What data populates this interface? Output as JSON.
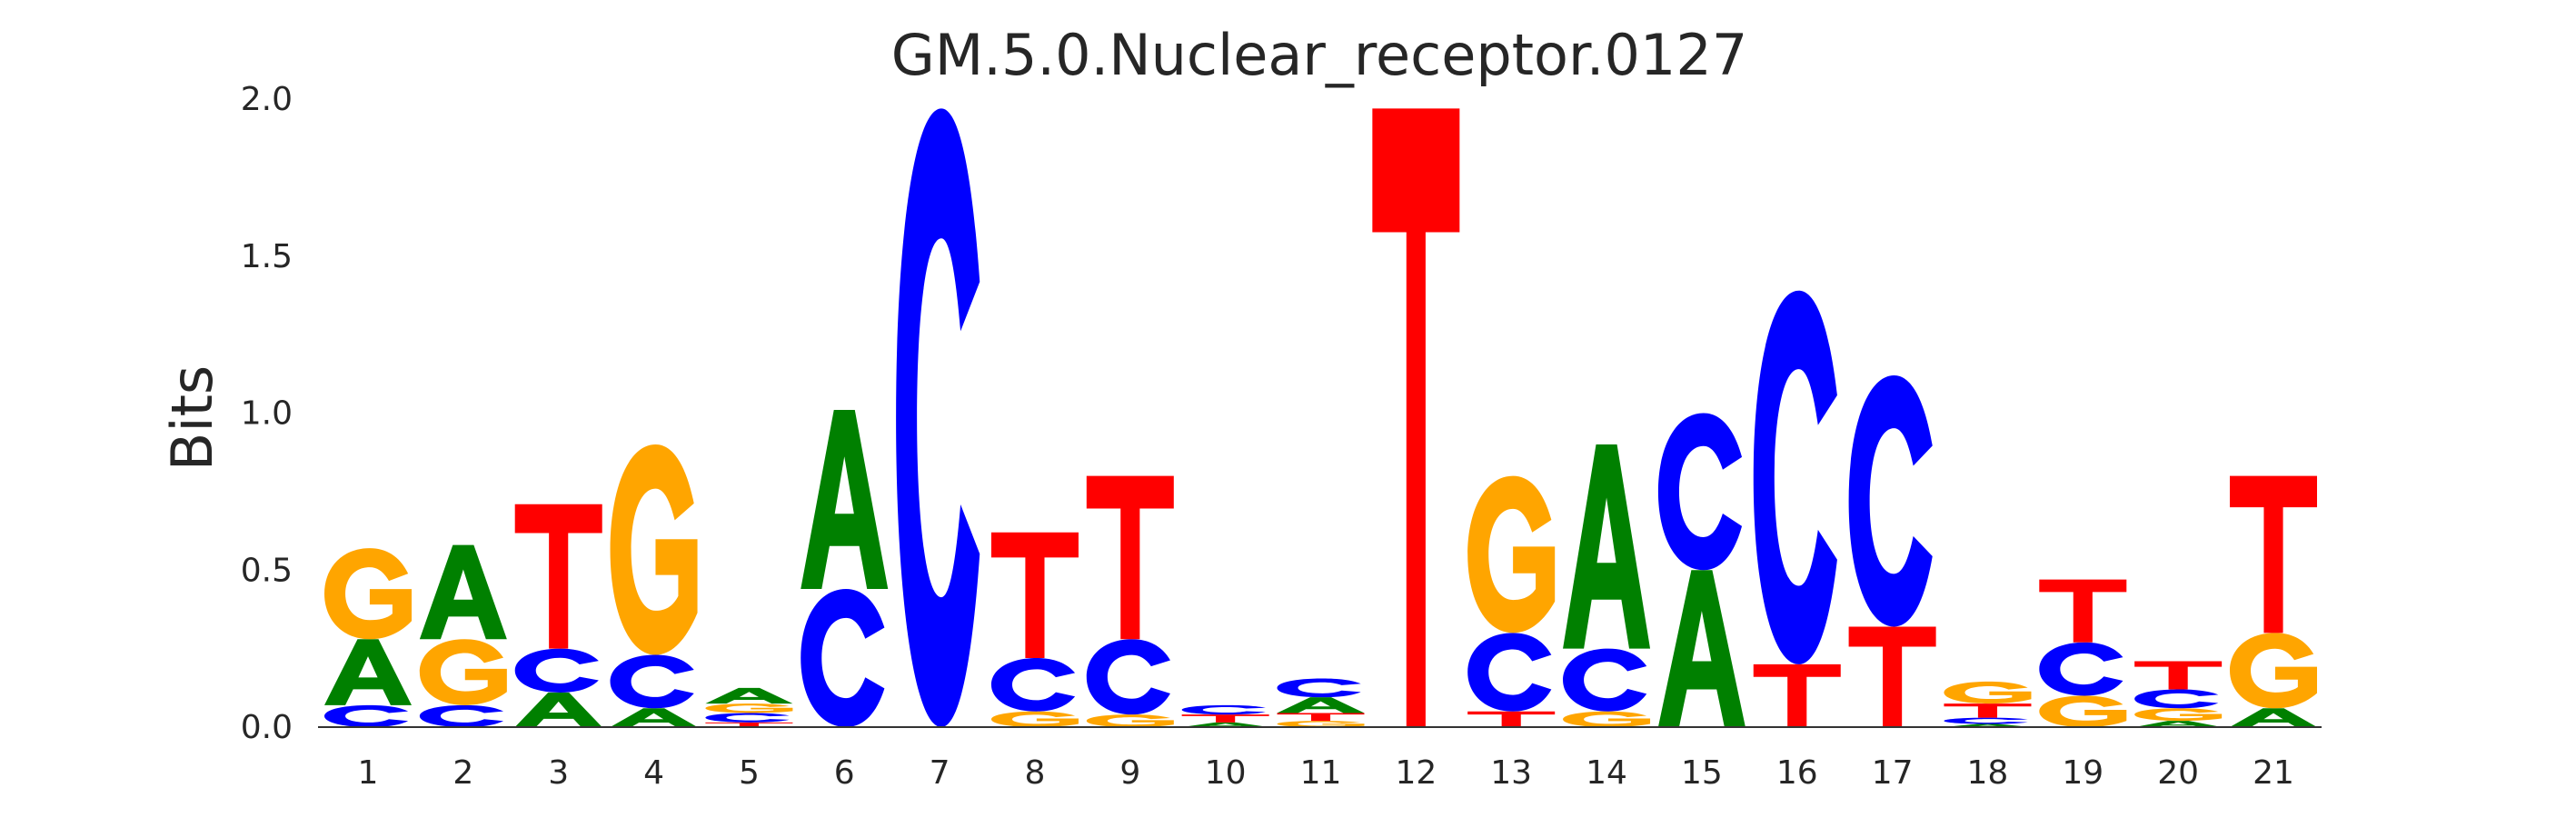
{
  "chart_data": {
    "type": "sequence-logo",
    "title": "GM.5.0.Nuclear_receptor.0127",
    "xlabel": "",
    "ylabel": "Bits",
    "ylim": [
      0,
      2.0
    ],
    "yticks": [
      "0.0",
      "0.5",
      "1.0",
      "1.5",
      "2.0"
    ],
    "ytick_values": [
      0,
      0.5,
      1.0,
      1.5,
      2.0
    ],
    "colors": {
      "A": "#008000",
      "C": "#0000ff",
      "G": "#ffa500",
      "T": "#ff0000"
    },
    "positions": [
      {
        "label": "1",
        "stack": [
          [
            "C",
            0.07
          ],
          [
            "A",
            0.21
          ],
          [
            "G",
            0.29
          ]
        ]
      },
      {
        "label": "2",
        "stack": [
          [
            "C",
            0.07
          ],
          [
            "G",
            0.21
          ],
          [
            "A",
            0.3
          ]
        ]
      },
      {
        "label": "3",
        "stack": [
          [
            "A",
            0.11
          ],
          [
            "C",
            0.14
          ],
          [
            "T",
            0.46
          ]
        ]
      },
      {
        "label": "4",
        "stack": [
          [
            "A",
            0.06
          ],
          [
            "C",
            0.17
          ],
          [
            "G",
            0.67
          ]
        ]
      },
      {
        "label": "5",
        "stack": [
          [
            "T",
            0.015
          ],
          [
            "C",
            0.03
          ],
          [
            "G",
            0.03
          ],
          [
            "A",
            0.05
          ]
        ]
      },
      {
        "label": "6",
        "stack": [
          [
            "C",
            0.44
          ],
          [
            "A",
            0.57
          ]
        ]
      },
      {
        "label": "7",
        "stack": [
          [
            "C",
            1.97
          ]
        ]
      },
      {
        "label": "8",
        "stack": [
          [
            "G",
            0.05
          ],
          [
            "C",
            0.17
          ],
          [
            "T",
            0.4
          ]
        ]
      },
      {
        "label": "9",
        "stack": [
          [
            "G",
            0.04
          ],
          [
            "C",
            0.24
          ],
          [
            "T",
            0.52
          ]
        ]
      },
      {
        "label": "10",
        "stack": [
          [
            "A",
            0.015
          ],
          [
            "T",
            0.025
          ],
          [
            "C",
            0.03
          ]
        ]
      },
      {
        "label": "11",
        "stack": [
          [
            "G",
            0.02
          ],
          [
            "T",
            0.025
          ],
          [
            "A",
            0.05
          ],
          [
            "C",
            0.06
          ]
        ]
      },
      {
        "label": "12",
        "stack": [
          [
            "T",
            1.97
          ]
        ]
      },
      {
        "label": "13",
        "stack": [
          [
            "T",
            0.05
          ],
          [
            "C",
            0.25
          ],
          [
            "G",
            0.5
          ]
        ]
      },
      {
        "label": "14",
        "stack": [
          [
            "G",
            0.05
          ],
          [
            "C",
            0.2
          ],
          [
            "A",
            0.65
          ]
        ]
      },
      {
        "label": "15",
        "stack": [
          [
            "A",
            0.5
          ],
          [
            "C",
            0.5
          ]
        ]
      },
      {
        "label": "16",
        "stack": [
          [
            "T",
            0.2
          ],
          [
            "C",
            1.19
          ]
        ]
      },
      {
        "label": "17",
        "stack": [
          [
            "T",
            0.32
          ],
          [
            "C",
            0.8
          ]
        ]
      },
      {
        "label": "18",
        "stack": [
          [
            "A",
            0.01
          ],
          [
            "C",
            0.02
          ],
          [
            "T",
            0.045
          ],
          [
            "G",
            0.07
          ]
        ]
      },
      {
        "label": "19",
        "stack": [
          [
            "G",
            0.1
          ],
          [
            "C",
            0.17
          ],
          [
            "T",
            0.2
          ]
        ]
      },
      {
        "label": "20",
        "stack": [
          [
            "A",
            0.02
          ],
          [
            "G",
            0.04
          ],
          [
            "C",
            0.06
          ],
          [
            "T",
            0.09
          ]
        ]
      },
      {
        "label": "21",
        "stack": [
          [
            "A",
            0.06
          ],
          [
            "G",
            0.24
          ],
          [
            "T",
            0.5
          ]
        ]
      }
    ]
  }
}
